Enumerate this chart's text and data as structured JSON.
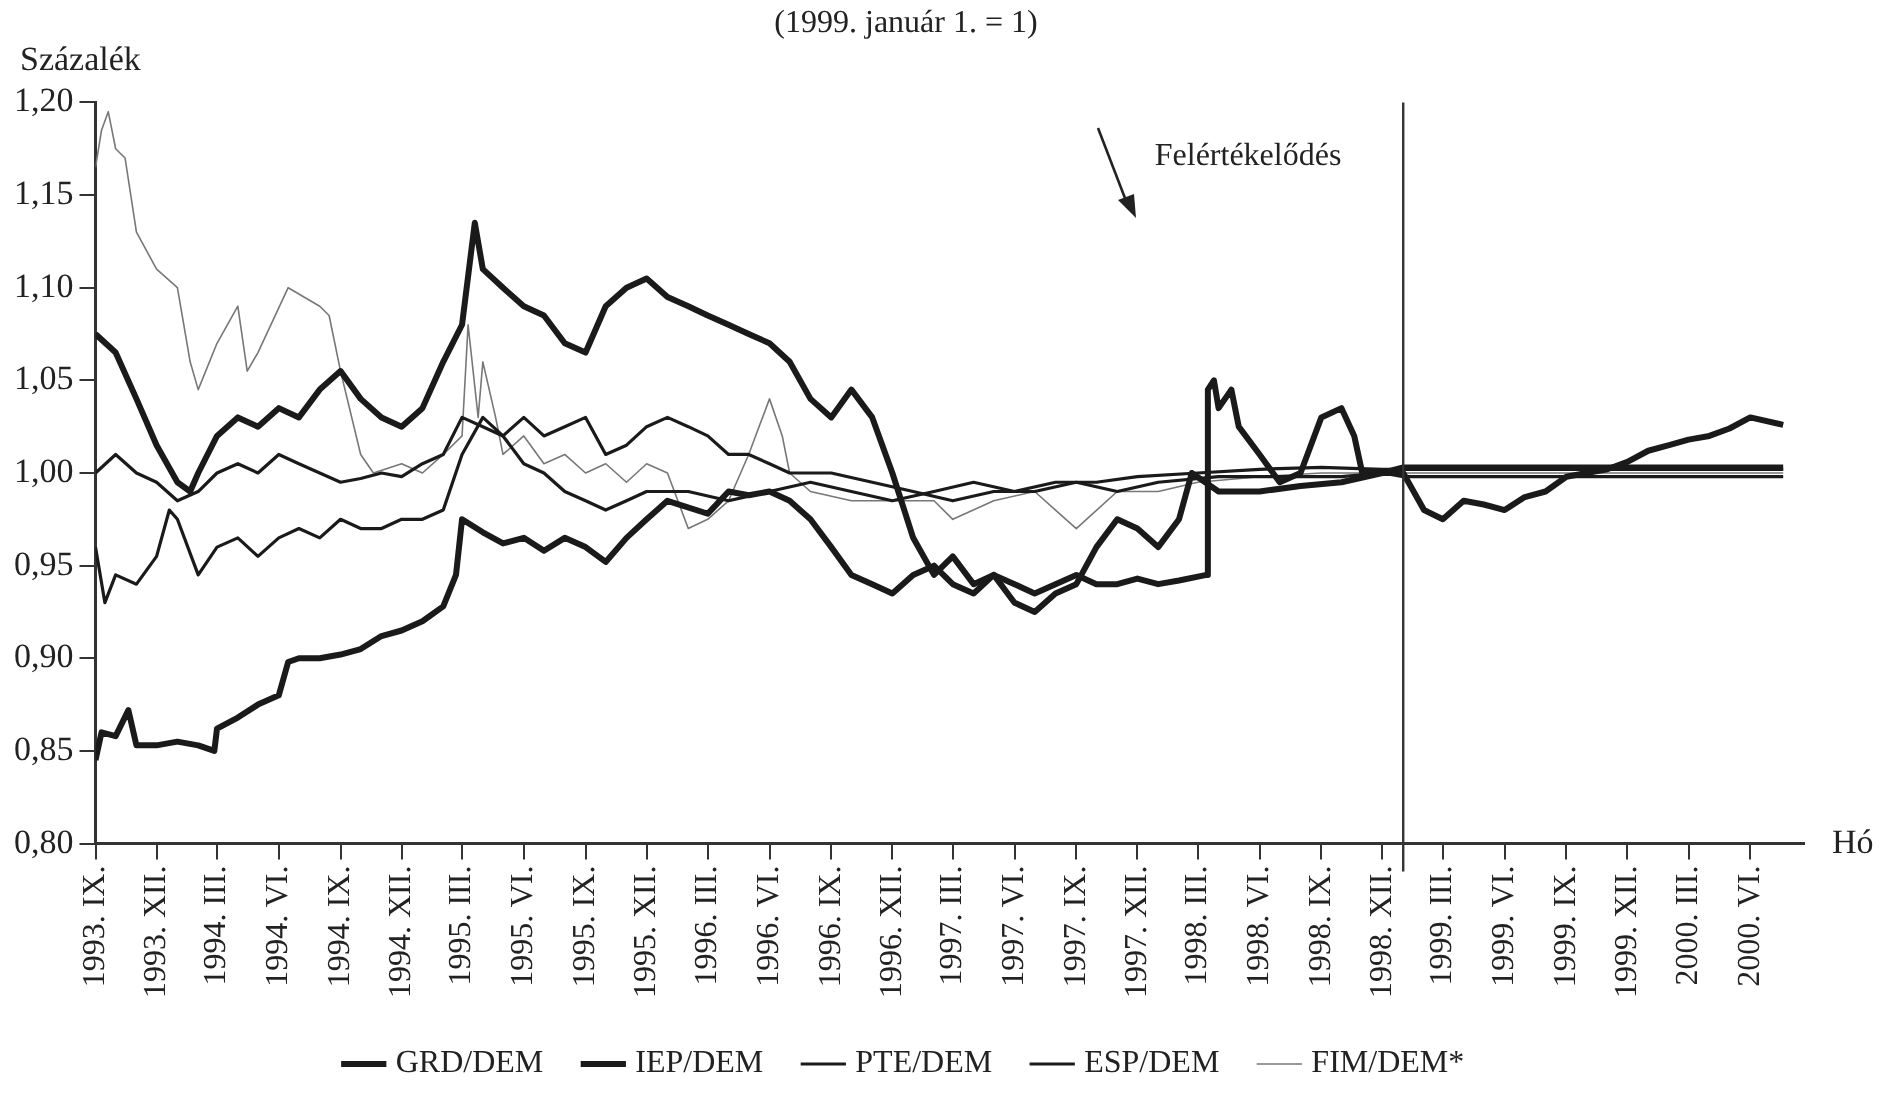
{
  "chart_data": {
    "type": "line",
    "title": "(1999. január 1. = 1)",
    "ylabel": "Százalék",
    "xlabel": "Hó",
    "annotations": [
      "Felértékelődés"
    ],
    "xlim": [
      "1993-09-01",
      "2000-08-20"
    ],
    "xticks": [
      {
        "value": "1993-09-01",
        "label": "1993. IX."
      },
      {
        "value": "1993-12-01",
        "label": "1993. XII."
      },
      {
        "value": "1994-03-01",
        "label": "1994. III."
      },
      {
        "value": "1994-06-01",
        "label": "1994. VI."
      },
      {
        "value": "1994-09-01",
        "label": "1994. IX."
      },
      {
        "value": "1994-12-01",
        "label": "1994. XII."
      },
      {
        "value": "1995-03-01",
        "label": "1995. III."
      },
      {
        "value": "1995-06-01",
        "label": "1995. VI."
      },
      {
        "value": "1995-09-01",
        "label": "1995. IX."
      },
      {
        "value": "1995-12-01",
        "label": "1995. XII."
      },
      {
        "value": "1996-03-01",
        "label": "1996. III."
      },
      {
        "value": "1996-06-01",
        "label": "1996. VI."
      },
      {
        "value": "1996-09-01",
        "label": "1996. IX."
      },
      {
        "value": "1996-12-01",
        "label": "1996. XII."
      },
      {
        "value": "1997-03-01",
        "label": "1997. III."
      },
      {
        "value": "1997-06-01",
        "label": "1997. VI."
      },
      {
        "value": "1997-09-01",
        "label": "1997. IX."
      },
      {
        "value": "1997-12-01",
        "label": "1997. XII."
      },
      {
        "value": "1998-03-01",
        "label": "1998. III."
      },
      {
        "value": "1998-06-01",
        "label": "1998. VI."
      },
      {
        "value": "1998-09-01",
        "label": "1998. IX."
      },
      {
        "value": "1998-12-01",
        "label": "1998. XII."
      },
      {
        "value": "1999-03-01",
        "label": "1999. III."
      },
      {
        "value": "1999-06-01",
        "label": "1999. VI."
      },
      {
        "value": "1999-09-01",
        "label": "1999. IX."
      },
      {
        "value": "1999-12-01",
        "label": "1999. XII."
      },
      {
        "value": "2000-03-01",
        "label": "2000. III."
      },
      {
        "value": "2000-06-01",
        "label": "2000. VI."
      }
    ],
    "ylim": [
      0.8,
      1.2
    ],
    "yticks": [
      {
        "value": 0.8,
        "label": "0,80"
      },
      {
        "value": 0.85,
        "label": "0,85"
      },
      {
        "value": 0.9,
        "label": "0,90"
      },
      {
        "value": 0.95,
        "label": "0,95"
      },
      {
        "value": 1.0,
        "label": "1,00"
      },
      {
        "value": 1.05,
        "label": "1,05"
      },
      {
        "value": 1.1,
        "label": "1,10"
      },
      {
        "value": 1.15,
        "label": "1,15"
      },
      {
        "value": 1.2,
        "label": "1,20"
      }
    ],
    "ref_lines": [
      {
        "axis": "x",
        "value": "1999-01-01",
        "label": null,
        "color": "#333333"
      }
    ],
    "grid": false,
    "legend": "bottom",
    "marker": "none",
    "line_style": "solid",
    "series": [
      {
        "name": "GRD/DEM",
        "color": "#1a1a1a",
        "x": [
          "1993-09-01",
          "1993-09-10",
          "1993-10-01",
          "1993-10-20",
          "1993-11-01",
          "1993-12-01",
          "1994-01-01",
          "1994-02-01",
          "1994-02-25",
          "1994-03-01",
          "1994-04-01",
          "1994-05-01",
          "1994-06-01",
          "1994-06-15",
          "1994-07-01",
          "1994-08-01",
          "1994-09-01",
          "1994-10-01",
          "1994-11-01",
          "1994-12-01",
          "1995-01-01",
          "1995-02-01",
          "1995-02-20",
          "1995-03-01",
          "1995-04-01",
          "1995-05-01",
          "1995-06-01",
          "1995-07-01",
          "1995-08-01",
          "1995-09-01",
          "1995-10-01",
          "1995-11-01",
          "1995-12-01",
          "1996-01-01",
          "1996-03-01",
          "1996-04-01",
          "1996-05-01",
          "1996-06-01",
          "1996-07-01",
          "1996-08-01",
          "1996-09-01",
          "1996-10-01",
          "1996-11-01",
          "1996-12-01",
          "1997-01-01",
          "1997-02-01",
          "1997-03-01",
          "1997-04-01",
          "1997-05-01",
          "1997-06-01",
          "1997-07-01",
          "1997-08-01",
          "1997-09-01",
          "1997-10-01",
          "1997-11-01",
          "1997-12-01",
          "1998-01-01",
          "1998-02-01",
          "1998-03-14",
          "1998-03-16",
          "1998-03-25",
          "1998-04-01",
          "1998-04-20",
          "1998-05-01",
          "1998-06-01",
          "1998-07-01",
          "1998-08-01",
          "1998-09-01",
          "1998-10-01",
          "1998-10-20",
          "1998-11-01",
          "1998-12-01",
          "1999-01-01",
          "1999-02-01",
          "1999-03-01",
          "1999-04-01",
          "1999-05-01",
          "1999-06-01",
          "1999-07-01",
          "1999-08-01",
          "1999-09-01",
          "1999-10-01",
          "1999-11-01",
          "1999-12-01",
          "2000-01-01",
          "2000-02-01",
          "2000-03-01",
          "2000-04-01",
          "2000-05-01",
          "2000-06-01",
          "2000-07-20"
        ],
        "values": [
          0.845,
          0.86,
          0.858,
          0.872,
          0.853,
          0.853,
          0.855,
          0.853,
          0.85,
          0.862,
          0.868,
          0.875,
          0.88,
          0.898,
          0.9,
          0.9,
          0.902,
          0.905,
          0.912,
          0.915,
          0.92,
          0.928,
          0.945,
          0.975,
          0.968,
          0.962,
          0.965,
          0.958,
          0.965,
          0.96,
          0.952,
          0.965,
          0.975,
          0.985,
          0.978,
          0.99,
          0.988,
          0.99,
          0.985,
          0.975,
          0.96,
          0.945,
          0.94,
          0.935,
          0.945,
          0.95,
          0.94,
          0.935,
          0.945,
          0.94,
          0.935,
          0.94,
          0.945,
          0.94,
          0.94,
          0.943,
          0.94,
          0.942,
          0.945,
          1.045,
          1.05,
          1.035,
          1.045,
          1.025,
          1.01,
          0.995,
          1.0,
          1.03,
          1.035,
          1.02,
          1.0,
          1.0,
          1.0,
          0.98,
          0.975,
          0.985,
          0.983,
          0.98,
          0.987,
          0.99,
          0.998,
          1.0,
          1.002,
          1.006,
          1.012,
          1.015,
          1.018,
          1.02,
          1.024,
          1.03,
          1.026
        ]
      },
      {
        "name": "IEP/DEM",
        "color": "#1a1a1a",
        "x": [
          "1993-09-01",
          "1993-10-01",
          "1993-11-01",
          "1993-12-01",
          "1994-01-01",
          "1994-01-20",
          "1994-02-01",
          "1994-03-01",
          "1994-04-01",
          "1994-05-01",
          "1994-06-01",
          "1994-07-01",
          "1994-08-01",
          "1994-09-01",
          "1994-10-01",
          "1994-11-01",
          "1994-12-01",
          "1995-01-01",
          "1995-02-01",
          "1995-03-01",
          "1995-03-20",
          "1995-04-01",
          "1995-05-01",
          "1995-06-01",
          "1995-07-01",
          "1995-08-01",
          "1995-09-01",
          "1995-10-01",
          "1995-11-01",
          "1995-12-01",
          "1996-01-01",
          "1996-02-01",
          "1996-03-01",
          "1996-04-01",
          "1996-05-01",
          "1996-06-01",
          "1996-07-01",
          "1996-08-01",
          "1996-09-01",
          "1996-10-01",
          "1996-11-01",
          "1996-12-01",
          "1997-01-01",
          "1997-02-01",
          "1997-03-01",
          "1997-04-01",
          "1997-05-01",
          "1997-06-01",
          "1997-07-01",
          "1997-08-01",
          "1997-09-01",
          "1997-10-01",
          "1997-11-01",
          "1997-12-01",
          "1998-01-01",
          "1998-02-01",
          "1998-02-20",
          "1998-04-01",
          "1998-06-01",
          "1998-08-01",
          "1998-10-01",
          "1998-12-01",
          "1999-01-01",
          "2000-07-20"
        ],
        "values": [
          1.075,
          1.065,
          1.04,
          1.015,
          0.995,
          0.99,
          1.0,
          1.02,
          1.03,
          1.025,
          1.035,
          1.03,
          1.045,
          1.055,
          1.04,
          1.03,
          1.025,
          1.035,
          1.06,
          1.08,
          1.135,
          1.11,
          1.1,
          1.09,
          1.085,
          1.07,
          1.065,
          1.09,
          1.1,
          1.105,
          1.095,
          1.09,
          1.085,
          1.08,
          1.075,
          1.07,
          1.06,
          1.04,
          1.03,
          1.045,
          1.03,
          1.0,
          0.965,
          0.945,
          0.955,
          0.94,
          0.945,
          0.93,
          0.925,
          0.935,
          0.94,
          0.96,
          0.975,
          0.97,
          0.96,
          0.975,
          1.0,
          0.99,
          0.99,
          0.993,
          0.995,
          1.0,
          1.003,
          1.003
        ]
      },
      {
        "name": "PTE/DEM",
        "color": "#1a1a1a",
        "x": [
          "1993-09-01",
          "1993-09-15",
          "1993-10-01",
          "1993-11-01",
          "1993-12-01",
          "1993-12-20",
          "1994-01-01",
          "1994-02-01",
          "1994-03-01",
          "1994-04-01",
          "1994-05-01",
          "1994-06-01",
          "1994-07-01",
          "1994-08-01",
          "1994-09-01",
          "1994-10-01",
          "1994-11-01",
          "1994-12-01",
          "1995-01-01",
          "1995-02-01",
          "1995-03-01",
          "1995-04-01",
          "1995-05-01",
          "1995-06-01",
          "1995-07-01",
          "1995-08-01",
          "1995-09-01",
          "1995-10-01",
          "1995-11-01",
          "1995-12-01",
          "1996-02-01",
          "1996-04-01",
          "1996-06-01",
          "1996-08-01",
          "1996-10-01",
          "1996-12-01",
          "1997-02-01",
          "1997-04-01",
          "1997-06-01",
          "1997-08-01",
          "1997-10-01",
          "1997-12-01",
          "1998-03-01",
          "1998-06-01",
          "1998-09-01",
          "1998-12-01",
          "1999-01-01",
          "2000-07-20"
        ],
        "values": [
          0.96,
          0.93,
          0.945,
          0.94,
          0.955,
          0.98,
          0.975,
          0.945,
          0.96,
          0.965,
          0.955,
          0.965,
          0.97,
          0.965,
          0.975,
          0.97,
          0.97,
          0.975,
          0.975,
          0.98,
          1.01,
          1.03,
          1.02,
          1.005,
          1.0,
          0.99,
          0.985,
          0.98,
          0.985,
          0.99,
          0.99,
          0.985,
          0.99,
          0.995,
          0.99,
          0.985,
          0.99,
          0.995,
          0.99,
          0.995,
          0.995,
          0.998,
          1.0,
          1.002,
          1.003,
          1.002,
          1.002,
          1.002
        ]
      },
      {
        "name": "ESP/DEM",
        "color": "#1a1a1a",
        "x": [
          "1993-09-01",
          "1993-10-01",
          "1993-11-01",
          "1993-12-01",
          "1994-01-01",
          "1994-02-01",
          "1994-03-01",
          "1994-04-01",
          "1994-05-01",
          "1994-06-01",
          "1994-07-01",
          "1994-08-01",
          "1994-09-01",
          "1994-10-01",
          "1994-11-01",
          "1994-12-01",
          "1995-01-01",
          "1995-02-01",
          "1995-03-01",
          "1995-04-01",
          "1995-05-01",
          "1995-06-01",
          "1995-07-01",
          "1995-08-01",
          "1995-09-01",
          "1995-10-01",
          "1995-11-01",
          "1995-12-01",
          "1996-01-01",
          "1996-02-01",
          "1996-03-01",
          "1996-04-01",
          "1996-05-01",
          "1996-06-01",
          "1996-07-01",
          "1996-09-01",
          "1996-11-01",
          "1997-01-01",
          "1997-03-01",
          "1997-05-01",
          "1997-07-01",
          "1997-09-01",
          "1997-11-01",
          "1998-01-01",
          "1998-04-01",
          "1998-07-01",
          "1998-10-01",
          "1998-12-01",
          "1999-01-01",
          "2000-07-20"
        ],
        "values": [
          1.0,
          1.01,
          1.0,
          0.995,
          0.985,
          0.99,
          1.0,
          1.005,
          1.0,
          1.01,
          1.005,
          1.0,
          0.995,
          0.997,
          1.0,
          0.998,
          1.005,
          1.01,
          1.03,
          1.025,
          1.02,
          1.03,
          1.02,
          1.025,
          1.03,
          1.01,
          1.015,
          1.025,
          1.03,
          1.025,
          1.02,
          1.01,
          1.01,
          1.005,
          1.0,
          1.0,
          0.995,
          0.99,
          0.985,
          0.99,
          0.99,
          0.995,
          0.99,
          0.995,
          0.998,
          0.998,
          0.998,
          1.0,
          0.998,
          0.998
        ]
      },
      {
        "name": "FIM/DEM*",
        "color": "#777777",
        "x": [
          "1993-09-01",
          "1993-09-10",
          "1993-09-20",
          "1993-10-01",
          "1993-10-15",
          "1993-11-01",
          "1993-12-01",
          "1994-01-01",
          "1994-01-20",
          "1994-02-01",
          "1994-03-01",
          "1994-04-01",
          "1994-04-15",
          "1994-05-01",
          "1994-06-15",
          "1994-08-01",
          "1994-08-15",
          "1994-09-01",
          "1994-10-01",
          "1994-10-20",
          "1994-12-01",
          "1995-01-01",
          "1995-02-01",
          "1995-03-01",
          "1995-03-10",
          "1995-03-25",
          "1995-04-01",
          "1995-04-20",
          "1995-05-01",
          "1995-06-01",
          "1995-07-01",
          "1995-08-01",
          "1995-09-01",
          "1995-10-01",
          "1995-11-01",
          "1995-12-01",
          "1996-01-01",
          "1996-02-01",
          "1996-03-01",
          "1996-04-01",
          "1996-05-01",
          "1996-06-01",
          "1996-06-20",
          "1996-07-01",
          "1996-08-01",
          "1996-10-01",
          "1996-12-01",
          "1997-02-01",
          "1997-03-01",
          "1997-05-01",
          "1997-07-01",
          "1997-08-01",
          "1997-09-01",
          "1997-11-01",
          "1998-01-01",
          "1998-03-01",
          "1998-06-01",
          "1998-09-01",
          "1998-12-01",
          "1999-01-01",
          "2000-07-20"
        ],
        "values": [
          1.165,
          1.185,
          1.195,
          1.175,
          1.17,
          1.13,
          1.11,
          1.1,
          1.06,
          1.045,
          1.07,
          1.09,
          1.055,
          1.065,
          1.1,
          1.09,
          1.085,
          1.055,
          1.01,
          1.0,
          1.005,
          1.0,
          1.01,
          1.02,
          1.08,
          1.03,
          1.06,
          1.03,
          1.01,
          1.02,
          1.005,
          1.01,
          1.0,
          1.005,
          0.995,
          1.005,
          1.0,
          0.97,
          0.975,
          0.985,
          1.01,
          1.04,
          1.02,
          1.0,
          0.99,
          0.985,
          0.985,
          0.985,
          0.975,
          0.985,
          0.99,
          0.98,
          0.97,
          0.99,
          0.99,
          0.995,
          0.998,
          1.0,
          1.0,
          1.0,
          1.0
        ]
      }
    ]
  }
}
